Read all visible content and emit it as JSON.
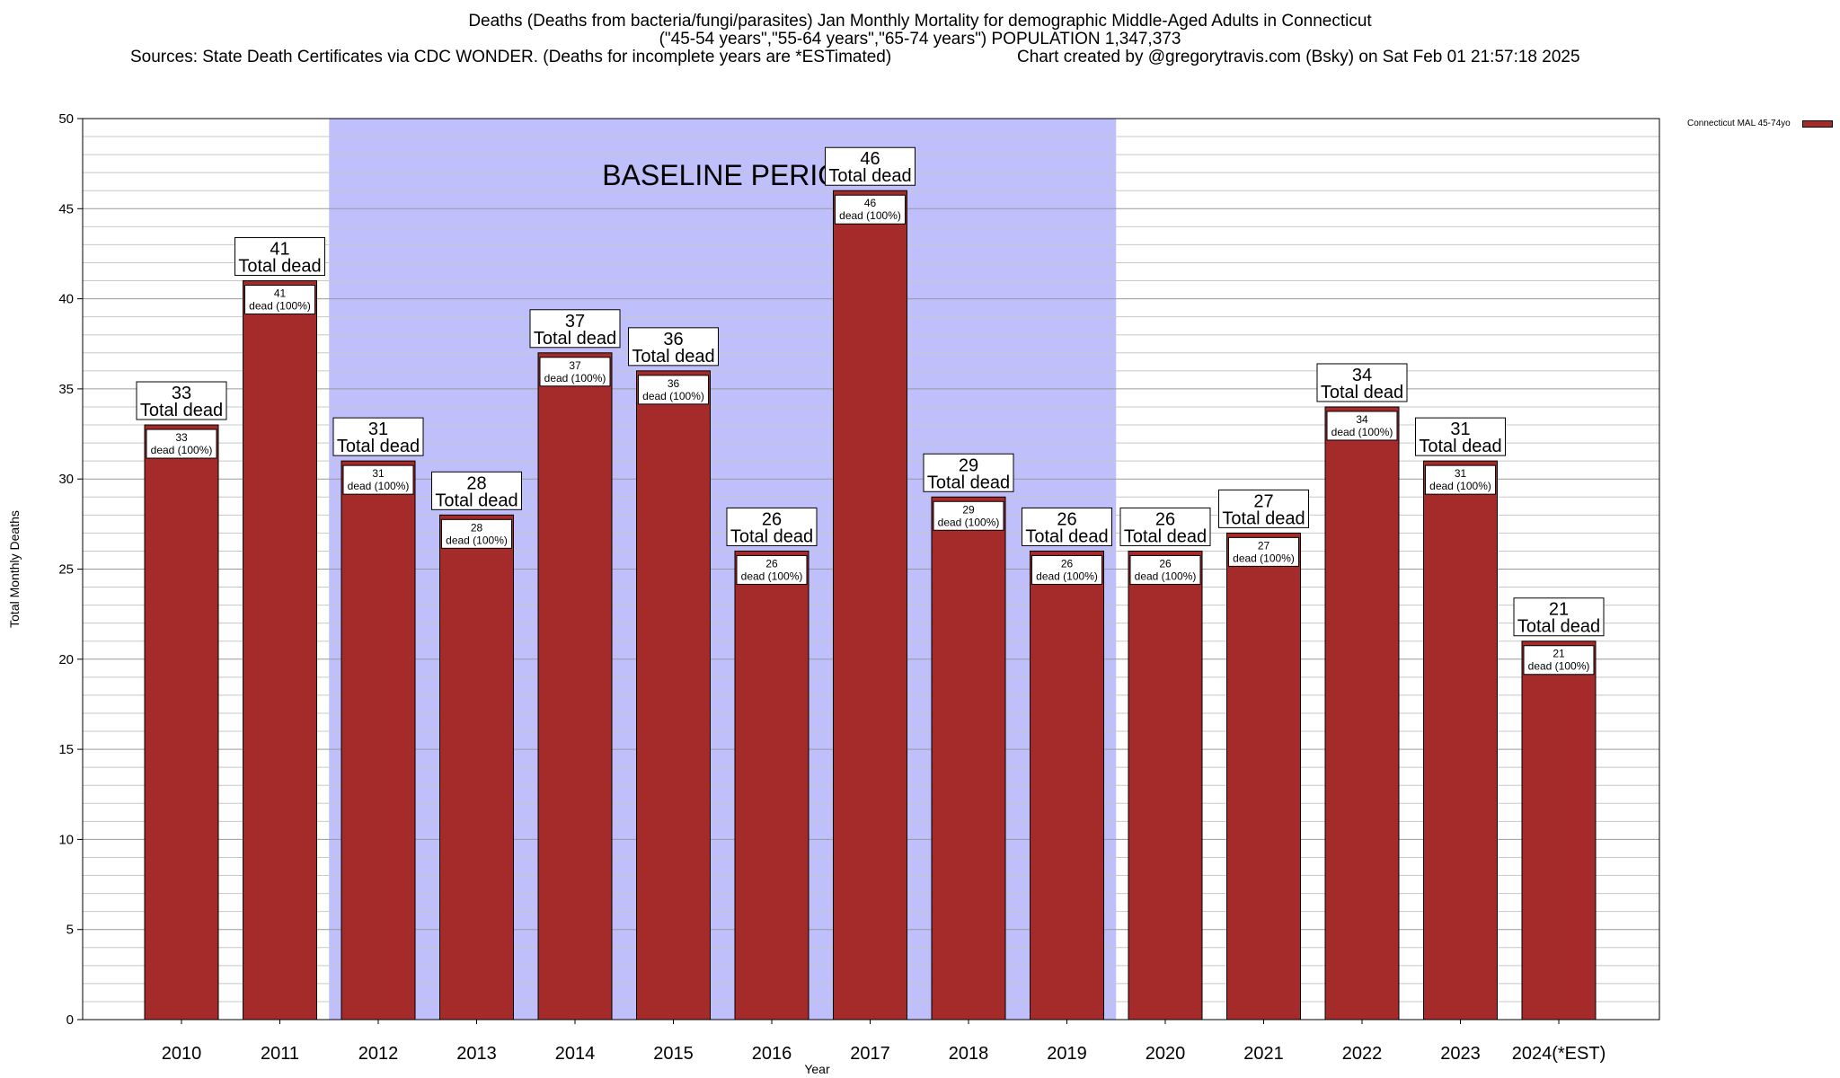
{
  "header": {
    "line1": "Deaths (Deaths from bacteria/fungi/parasites) Jan Monthly Mortality for demographic Middle-Aged Adults in Connecticut",
    "line2": "(\"45-54 years\",\"55-64 years\",\"65-74 years\") POPULATION 1,347,373",
    "line3_left": "Sources: State Death Certificates via CDC WONDER. (Deaths for incomplete years are *ESTimated)",
    "line3_right": "Chart created by @gregorytravis.com (Bsky) on Sat Feb 01 21:57:18 2025"
  },
  "legend": {
    "label": "Connecticut MAL 45-74yo"
  },
  "colors": {
    "bar": "#a52a2a",
    "baseline_band": "#bfbffb"
  },
  "chart_data": {
    "type": "bar",
    "title": "Deaths (Deaths from bacteria/fungi/parasites) Jan Monthly Mortality for demographic Middle-Aged Adults in Connecticut",
    "xlabel": "Year",
    "ylabel": "Total Monthly Deaths",
    "ylim": [
      0,
      50
    ],
    "yticks": [
      0,
      5,
      10,
      15,
      20,
      25,
      30,
      35,
      40,
      45,
      50
    ],
    "categories": [
      "2010",
      "2011",
      "2012",
      "2013",
      "2014",
      "2015",
      "2016",
      "2017",
      "2018",
      "2019",
      "2020",
      "2021",
      "2022",
      "2023",
      "2024(*EST)"
    ],
    "series": [
      {
        "name": "Connecticut MAL 45-74yo",
        "values": [
          33,
          41,
          31,
          28,
          37,
          36,
          26,
          46,
          29,
          26,
          26,
          27,
          34,
          31,
          21
        ]
      }
    ],
    "top_label_suffix": "Total dead",
    "inner_label_suffix": "dead (100%)",
    "baseline_period": {
      "label": "BASELINE PERIOD",
      "from": "2012",
      "to": "2019"
    },
    "grid": true,
    "legend_position": "top-right"
  }
}
